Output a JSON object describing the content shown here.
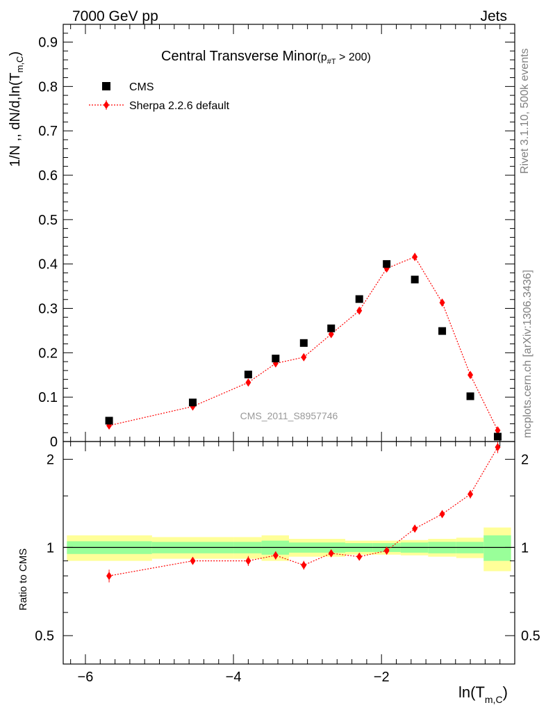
{
  "header": {
    "left": "7000 GeV pp",
    "right": "Jets"
  },
  "side_labels": {
    "rivet": "Rivet 3.1.10,  500k events",
    "source": "mcplots.cern.ch [arXiv:1306.3436]"
  },
  "chart_data": {
    "type": "scatter",
    "title_main": "Central Transverse Minor",
    "title_sub_base": "(p",
    "title_sub_sub": "#T",
    "title_sub_rest": "  > 200)",
    "watermark": "CMS_2011_S8957746",
    "xlabel_base": "ln(T",
    "xlabel_sub": "m,C",
    "xlabel_close": ")",
    "ylabel_main": "1/N ,, dN/d,ln(T",
    "ylabel_main_sub": "m,C",
    "ylabel_main_close": ")",
    "ylabel_ratio": "Ratio to CMS",
    "xlim": [
      -6.3,
      -0.2
    ],
    "ylim_main": [
      0,
      0.94
    ],
    "ylim_ratio": [
      0.4,
      2.3
    ],
    "ratio_log_scale": true,
    "x_ticks": [
      -6,
      -4,
      -2
    ],
    "x_tick_labels": [
      "−6",
      "−4",
      "−2"
    ],
    "y_ticks_main": [
      0,
      0.1,
      0.2,
      0.3,
      0.4,
      0.5,
      0.6,
      0.7,
      0.8,
      0.9
    ],
    "y_tick_labels_main": [
      "0",
      "0.1",
      "0.2",
      "0.3",
      "0.4",
      "0.5",
      "0.6",
      "0.7",
      "0.8",
      "0.9"
    ],
    "y_ticks_ratio": [
      0.5,
      1,
      2
    ],
    "y_tick_labels_ratio": [
      "0.5",
      "1",
      "2"
    ],
    "legend": {
      "placement": "top-left",
      "entries": [
        "CMS",
        "Sherpa 2.2.6 default"
      ]
    },
    "series": [
      {
        "name": "CMS",
        "marker": "square",
        "color": "#000000",
        "x": [
          -5.68,
          -4.55,
          -3.8,
          -3.43,
          -3.05,
          -2.68,
          -2.3,
          -1.93,
          -1.55,
          -1.18,
          -0.8,
          -0.43
        ],
        "y": [
          0.047,
          0.088,
          0.151,
          0.187,
          0.222,
          0.255,
          0.321,
          0.4,
          0.365,
          0.249,
          0.102,
          0.011
        ]
      },
      {
        "name": "Sherpa 2.2.6 default",
        "marker": "diamond",
        "color": "#ff0000",
        "x": [
          -5.68,
          -4.55,
          -3.8,
          -3.43,
          -3.05,
          -2.68,
          -2.3,
          -1.93,
          -1.55,
          -1.18,
          -0.8,
          -0.43
        ],
        "y": [
          0.036,
          0.079,
          0.133,
          0.176,
          0.19,
          0.242,
          0.295,
          0.39,
          0.416,
          0.313,
          0.15,
          0.025
        ],
        "yerr": [
          0.003,
          0.004,
          0.005,
          0.006,
          0.006,
          0.007,
          0.007,
          0.008,
          0.009,
          0.008,
          0.006,
          0.004
        ],
        "ratio": [
          0.8,
          0.9,
          0.9,
          0.94,
          0.87,
          0.955,
          0.93,
          0.975,
          1.16,
          1.3,
          1.52,
          2.2
        ],
        "ratio_err": [
          0.04,
          0.025,
          0.035,
          0.03,
          0.03,
          0.025,
          0.02,
          0.02,
          0.025,
          0.03,
          0.05,
          0.1
        ]
      }
    ],
    "uncertainty_bands": {
      "edges": [
        -6.25,
        -5.1,
        -4.0,
        -3.62,
        -3.25,
        -2.87,
        -2.49,
        -2.12,
        -1.74,
        -1.37,
        -0.99,
        -0.62,
        -0.25
      ],
      "stat_lo": [
        0.95,
        0.955,
        0.955,
        0.945,
        0.96,
        0.96,
        0.965,
        0.965,
        0.96,
        0.955,
        0.955,
        0.9
      ],
      "stat_hi": [
        1.05,
        1.045,
        1.045,
        1.055,
        1.04,
        1.04,
        1.035,
        1.035,
        1.04,
        1.045,
        1.045,
        1.1
      ],
      "total_lo": [
        0.9,
        0.915,
        0.915,
        0.9,
        0.93,
        0.93,
        0.945,
        0.945,
        0.94,
        0.93,
        0.92,
        0.83
      ],
      "total_hi": [
        1.1,
        1.085,
        1.085,
        1.1,
        1.07,
        1.07,
        1.055,
        1.055,
        1.06,
        1.07,
        1.08,
        1.17
      ],
      "stat_color": "#99ff99",
      "total_color": "#ffff99"
    }
  }
}
